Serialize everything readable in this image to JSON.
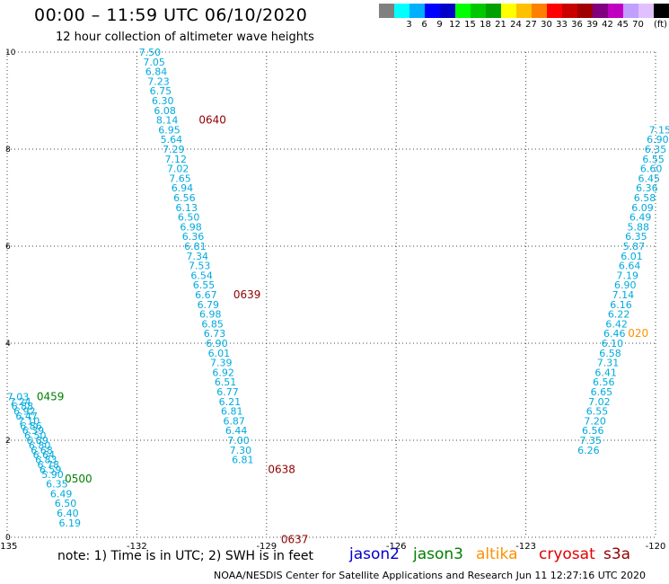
{
  "title": "00:00 – 11:59 UTC 06/10/2020",
  "subtitle": "12 hour collection of altimeter wave heights",
  "legend": {
    "colors": [
      "#808080",
      "#00ffff",
      "#00b0ff",
      "#0000ff",
      "#0000c8",
      "#00ff00",
      "#00c800",
      "#00a000",
      "#ffff00",
      "#ffc000",
      "#ff8000",
      "#ff0000",
      "#c80000",
      "#a00000",
      "#800080",
      "#c000c0",
      "#c0a0ff",
      "#e0c0ff",
      "#000000"
    ],
    "labels": [
      "",
      "3",
      "6",
      "9",
      "12",
      "15",
      "18",
      "21",
      "24",
      "27",
      "30",
      "33",
      "36",
      "39",
      "42",
      "45",
      "70"
    ],
    "unit": "(ft)"
  },
  "note": "note: 1) Time is in UTC; 2) SWH is in feet",
  "satellites": [
    {
      "name": "jason2",
      "color": "#0000d0"
    },
    {
      "name": "jason3",
      "color": "#008000"
    },
    {
      "name": "altika",
      "color": "#ff9000"
    },
    {
      "name": "cryosat",
      "color": "#e00000"
    },
    {
      "name": "s3a",
      "color": "#900000"
    }
  ],
  "credit": "NOAA/NESDIS Center for Satellite Applications and Research    Jun 11 12:27:16 UTC 2020",
  "chart_data": {
    "type": "scatter",
    "title": "00:00 – 11:59 UTC 06/10/2020",
    "subtitle": "12 hour collection of altimeter wave heights",
    "xlim": [
      -135,
      -120
    ],
    "ylim": [
      0,
      10
    ],
    "x_ticks": [
      -135,
      -132,
      -129,
      -126,
      -123,
      -120
    ],
    "x_tick_labels": [
      "-135",
      "-132",
      "-129",
      "-126",
      "-123",
      "-120"
    ],
    "y_ticks": [
      0,
      2,
      4,
      6,
      8,
      10
    ],
    "y_tick_labels": [
      "0",
      "2",
      "4",
      "6",
      "8",
      "10"
    ],
    "grid": true,
    "value_color": "#00aadd",
    "series": [
      {
        "name": "s3a",
        "color": "#900000",
        "points": [
          {
            "x": -131.7,
            "y": 10.0,
            "v": "7.50"
          },
          {
            "x": -131.6,
            "y": 9.8,
            "v": "7.05"
          },
          {
            "x": -131.55,
            "y": 9.6,
            "v": "6.84"
          },
          {
            "x": -131.5,
            "y": 9.4,
            "v": "7.23"
          },
          {
            "x": -131.45,
            "y": 9.2,
            "v": "6.75"
          },
          {
            "x": -131.4,
            "y": 9.0,
            "v": "6.30"
          },
          {
            "x": -131.35,
            "y": 8.8,
            "v": "6.08"
          },
          {
            "x": -131.3,
            "y": 8.6,
            "v": "8.14"
          },
          {
            "x": -131.25,
            "y": 8.4,
            "v": "6.95"
          },
          {
            "x": -131.2,
            "y": 8.2,
            "v": "5.64"
          },
          {
            "x": -131.15,
            "y": 8.0,
            "v": "7.29"
          },
          {
            "x": -131.1,
            "y": 7.8,
            "v": "7.12"
          },
          {
            "x": -131.05,
            "y": 7.6,
            "v": "7.02"
          },
          {
            "x": -131.0,
            "y": 7.4,
            "v": "7.65"
          },
          {
            "x": -130.95,
            "y": 7.2,
            "v": "6.94"
          },
          {
            "x": -130.9,
            "y": 7.0,
            "v": "6.56"
          },
          {
            "x": -130.85,
            "y": 6.8,
            "v": "6.13"
          },
          {
            "x": -130.8,
            "y": 6.6,
            "v": "6.50"
          },
          {
            "x": -130.75,
            "y": 6.4,
            "v": "6.98"
          },
          {
            "x": -130.7,
            "y": 6.2,
            "v": "6.36"
          },
          {
            "x": -130.65,
            "y": 6.0,
            "v": "6.81"
          },
          {
            "x": -130.6,
            "y": 5.8,
            "v": "7.34"
          },
          {
            "x": -130.55,
            "y": 5.6,
            "v": "7.53"
          },
          {
            "x": -130.5,
            "y": 5.4,
            "v": "6.54"
          },
          {
            "x": -130.45,
            "y": 5.2,
            "v": "6.55"
          },
          {
            "x": -130.4,
            "y": 5.0,
            "v": "6.67"
          },
          {
            "x": -130.35,
            "y": 4.8,
            "v": "6.79"
          },
          {
            "x": -130.3,
            "y": 4.6,
            "v": "6.98"
          },
          {
            "x": -130.25,
            "y": 4.4,
            "v": "6.85"
          },
          {
            "x": -130.2,
            "y": 4.2,
            "v": "6.73"
          },
          {
            "x": -130.15,
            "y": 4.0,
            "v": "6.90"
          },
          {
            "x": -130.1,
            "y": 3.8,
            "v": "6.01"
          },
          {
            "x": -130.05,
            "y": 3.6,
            "v": "7.39"
          },
          {
            "x": -130.0,
            "y": 3.4,
            "v": "6.92"
          },
          {
            "x": -129.95,
            "y": 3.2,
            "v": "6.51"
          },
          {
            "x": -129.9,
            "y": 3.0,
            "v": "6.77"
          },
          {
            "x": -129.85,
            "y": 2.8,
            "v": "6.21"
          },
          {
            "x": -129.8,
            "y": 2.6,
            "v": "6.81"
          },
          {
            "x": -129.75,
            "y": 2.4,
            "v": "6.87"
          },
          {
            "x": -129.7,
            "y": 2.2,
            "v": "6.44"
          },
          {
            "x": -129.65,
            "y": 2.0,
            "v": "7.00"
          },
          {
            "x": -129.6,
            "y": 1.8,
            "v": "7.30"
          },
          {
            "x": -129.55,
            "y": 1.6,
            "v": "6.81"
          }
        ],
        "time_labels": [
          {
            "x": -130.25,
            "y": 8.6,
            "text": "0640"
          },
          {
            "x": -129.45,
            "y": 5.0,
            "text": "0639"
          },
          {
            "x": -128.65,
            "y": 1.4,
            "text": "0638"
          },
          {
            "x": -128.35,
            "y": -0.05,
            "text": "0637"
          }
        ]
      },
      {
        "name": "jason3",
        "color": "#008000",
        "points": [
          {
            "x": -134.75,
            "y": 2.9,
            "v": "7.03"
          },
          {
            "x": -134.7,
            "y": 2.8,
            "v": "7.24"
          },
          {
            "x": -134.65,
            "y": 2.7,
            "v": "6.88"
          },
          {
            "x": -134.6,
            "y": 2.6,
            "v": "6.92"
          },
          {
            "x": -134.55,
            "y": 2.5,
            "v": "6.47"
          },
          {
            "x": -134.5,
            "y": 2.4,
            "v": "7.10"
          },
          {
            "x": -134.45,
            "y": 2.3,
            "v": "6.86"
          },
          {
            "x": -134.4,
            "y": 2.2,
            "v": "6.39"
          },
          {
            "x": -134.35,
            "y": 2.1,
            "v": "6.50"
          },
          {
            "x": -134.3,
            "y": 2.0,
            "v": "6.89"
          },
          {
            "x": -134.25,
            "y": 1.9,
            "v": "6.80"
          },
          {
            "x": -134.2,
            "y": 1.8,
            "v": "6.68"
          },
          {
            "x": -134.15,
            "y": 1.7,
            "v": "6.64"
          },
          {
            "x": -134.1,
            "y": 1.6,
            "v": "6.83"
          },
          {
            "x": -134.05,
            "y": 1.5,
            "v": "6.78"
          },
          {
            "x": -134.0,
            "y": 1.4,
            "v": "6.59"
          },
          {
            "x": -133.95,
            "y": 1.3,
            "v": "5.90"
          },
          {
            "x": -133.85,
            "y": 1.1,
            "v": "6.35"
          },
          {
            "x": -133.75,
            "y": 0.9,
            "v": "6.49"
          },
          {
            "x": -133.65,
            "y": 0.7,
            "v": "6.50"
          },
          {
            "x": -133.6,
            "y": 0.5,
            "v": "6.40"
          },
          {
            "x": -133.55,
            "y": 0.3,
            "v": "6.19"
          }
        ],
        "time_labels": [
          {
            "x": -134.0,
            "y": 2.9,
            "text": "0459"
          },
          {
            "x": -133.35,
            "y": 1.2,
            "text": "0500"
          }
        ]
      },
      {
        "name": "altika",
        "color": "#ff9000",
        "points": [
          {
            "x": -119.9,
            "y": 8.4,
            "v": "7.15"
          },
          {
            "x": -119.95,
            "y": 8.2,
            "v": "6.90"
          },
          {
            "x": -120.0,
            "y": 8.0,
            "v": "6.35"
          },
          {
            "x": -120.05,
            "y": 7.8,
            "v": "6.55"
          },
          {
            "x": -120.1,
            "y": 7.6,
            "v": "6.60"
          },
          {
            "x": -120.15,
            "y": 7.4,
            "v": "6.45"
          },
          {
            "x": -120.2,
            "y": 7.2,
            "v": "6.36"
          },
          {
            "x": -120.25,
            "y": 7.0,
            "v": "6.58"
          },
          {
            "x": -120.3,
            "y": 6.8,
            "v": "6.09"
          },
          {
            "x": -120.35,
            "y": 6.6,
            "v": "6.49"
          },
          {
            "x": -120.4,
            "y": 6.4,
            "v": "5.88"
          },
          {
            "x": -120.45,
            "y": 6.2,
            "v": "6.35"
          },
          {
            "x": -120.5,
            "y": 6.0,
            "v": "5.87"
          },
          {
            "x": -120.55,
            "y": 5.8,
            "v": "6.01"
          },
          {
            "x": -120.6,
            "y": 5.6,
            "v": "6.64"
          },
          {
            "x": -120.65,
            "y": 5.4,
            "v": "7.19"
          },
          {
            "x": -120.7,
            "y": 5.2,
            "v": "6.90"
          },
          {
            "x": -120.75,
            "y": 5.0,
            "v": "7.14"
          },
          {
            "x": -120.8,
            "y": 4.8,
            "v": "6.16"
          },
          {
            "x": -120.85,
            "y": 4.6,
            "v": "6.22"
          },
          {
            "x": -120.9,
            "y": 4.4,
            "v": "6.42"
          },
          {
            "x": -120.95,
            "y": 4.2,
            "v": "6.46"
          },
          {
            "x": -121.0,
            "y": 4.0,
            "v": "6.10"
          },
          {
            "x": -121.05,
            "y": 3.8,
            "v": "6.58"
          },
          {
            "x": -121.1,
            "y": 3.6,
            "v": "7.31"
          },
          {
            "x": -121.15,
            "y": 3.4,
            "v": "6.41"
          },
          {
            "x": -121.2,
            "y": 3.2,
            "v": "6.56"
          },
          {
            "x": -121.25,
            "y": 3.0,
            "v": "6.65"
          },
          {
            "x": -121.3,
            "y": 2.8,
            "v": "7.02"
          },
          {
            "x": -121.35,
            "y": 2.6,
            "v": "6.55"
          },
          {
            "x": -121.4,
            "y": 2.4,
            "v": "7.20"
          },
          {
            "x": -121.45,
            "y": 2.2,
            "v": "6.56"
          },
          {
            "x": -121.5,
            "y": 2.0,
            "v": "7.35"
          },
          {
            "x": -121.55,
            "y": 1.8,
            "v": "6.26"
          }
        ],
        "time_labels": [
          {
            "x": -120.4,
            "y": 4.2,
            "text": "020"
          }
        ]
      }
    ]
  }
}
